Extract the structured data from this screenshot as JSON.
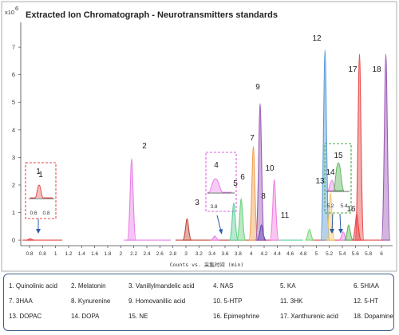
{
  "chart_data": {
    "type": "line",
    "title": "Extracted Ion Chromatograph - Neurotransmitters standards",
    "y_scale_label": "x10",
    "y_scale_exp": "6",
    "xlabel": "Counts vs. 采集时间 (min)",
    "xlim": [
      0.7,
      6.2
    ],
    "ylim": [
      -0.2,
      7.9
    ],
    "x_ticks": [
      "0.8",
      "0.8",
      "1",
      "1.2",
      "1.4",
      "1.6",
      "1.8",
      "2",
      "2.2",
      "2.4",
      "2.6",
      "2.8",
      "3",
      "3.2",
      "3.4",
      "3.6",
      "3.8",
      "4",
      "4.2",
      "4.4",
      "4.6",
      "4.8",
      "5",
      "5.2",
      "5.4",
      "5.6",
      "5.8",
      "6"
    ],
    "y_ticks": [
      "0",
      "1",
      "2",
      "3",
      "4",
      "5",
      "6",
      "7"
    ],
    "series": [
      {
        "name": "1",
        "rt": 0.84,
        "height": 0.05,
        "color": "#e84a4a"
      },
      {
        "name": "2",
        "rt": 2.34,
        "height": 2.95,
        "color": "#e87fe8"
      },
      {
        "name": "3",
        "rt": 3.16,
        "height": 0.78,
        "color": "#c24a3a"
      },
      {
        "name": "4",
        "rt": 3.57,
        "height": 0.15,
        "color": "#e87fe8"
      },
      {
        "name": "5",
        "rt": 3.85,
        "height": 1.35,
        "color": "#5fcf9a"
      },
      {
        "name": "6",
        "rt": 3.96,
        "height": 1.5,
        "color": "#6ad17a"
      },
      {
        "name": "7",
        "rt": 4.14,
        "height": 3.4,
        "color": "#f0a050"
      },
      {
        "name": "8",
        "rt": 4.26,
        "height": 0.55,
        "color": "#3c3cb0"
      },
      {
        "name": "9",
        "rt": 4.24,
        "height": 4.95,
        "color": "#9b59b6"
      },
      {
        "name": "10",
        "rt": 4.45,
        "height": 2.2,
        "color": "#f080e0"
      },
      {
        "name": "11",
        "rt": 4.97,
        "height": 0.4,
        "color": "#7cd67c"
      },
      {
        "name": "12",
        "rt": 5.2,
        "height": 6.9,
        "color": "#5b9bd5"
      },
      {
        "name": "13",
        "rt": 5.28,
        "height": 1.7,
        "color": "#f5c76a"
      },
      {
        "name": "14",
        "rt": 5.47,
        "height": 0.3,
        "color": "#e87fe8"
      },
      {
        "name": "15",
        "rt": 5.55,
        "height": 0.55,
        "color": "#5fb85f"
      },
      {
        "name": "16",
        "rt": 5.67,
        "height": 0.95,
        "color": "#e84a4a"
      },
      {
        "name": "17",
        "rt": 5.71,
        "height": 6.75,
        "color": "#e84a4a"
      },
      {
        "name": "18",
        "rt": 6.1,
        "height": 6.75,
        "color": "#9b59b6"
      }
    ],
    "insets": [
      {
        "id": "inset-1",
        "label": "1",
        "ticks": [
          "0.6",
          "0.8"
        ],
        "border": "#e84a4a"
      },
      {
        "id": "inset-4",
        "label": "4",
        "ticks": [
          "3.8"
        ],
        "border": "#e060e0"
      },
      {
        "id": "inset-14-15",
        "labels": [
          "14",
          "15"
        ],
        "ticks": [
          "5.2",
          "5.4"
        ],
        "border": "#4ca64c"
      }
    ]
  },
  "legend": {
    "border_color": "#3d5f8c",
    "items": [
      "1. Quinolinic acid",
      "2. Melatonin",
      "3. Vanillylmandelic acid",
      "4. NAS",
      "5. KA",
      "6. 5HIAA",
      "7. 3HAA",
      "8. Kynurenine",
      "9. Homovanillic acid",
      "10. 5-HTP",
      "11. 3HK",
      "12. 5-HT",
      "13. DOPAC",
      "14. DOPA",
      "15. NE",
      "16. Epimephrine",
      "17. Xanthurenic acid",
      "18. Dopamine"
    ]
  }
}
